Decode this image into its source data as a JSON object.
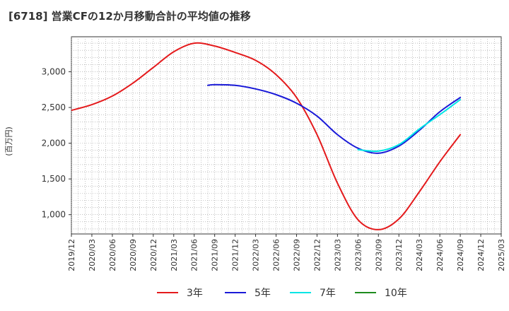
{
  "chart_data": {
    "type": "line",
    "title": "[6718]  営業CFの12か月移動合計の平均値の推移",
    "ylabel": "(百万円)",
    "xlabel": "",
    "ylim": [
      730,
      3490
    ],
    "grid": true,
    "legend_position": "bottom",
    "x_ticks": [
      "2019/12",
      "2020/03",
      "2020/06",
      "2020/09",
      "2020/12",
      "2021/03",
      "2021/06",
      "2021/09",
      "2021/12",
      "2022/03",
      "2022/06",
      "2022/09",
      "2022/12",
      "2023/03",
      "2023/06",
      "2023/09",
      "2023/12",
      "2024/03",
      "2024/06",
      "2024/09",
      "2024/12",
      "2025/03"
    ],
    "y_ticks": [
      1000,
      1500,
      2000,
      2500,
      3000
    ],
    "y_tick_labels": [
      "1,000",
      "1,500",
      "2,000",
      "2,500",
      "3,000"
    ],
    "series": [
      {
        "name": "3年",
        "color": "#e41a1c",
        "x": [
          "2019/12",
          "2020/03",
          "2020/06",
          "2020/09",
          "2020/12",
          "2021/03",
          "2021/06",
          "2021/09",
          "2021/12",
          "2022/03",
          "2022/06",
          "2022/09",
          "2022/12",
          "2023/03",
          "2023/06",
          "2023/09",
          "2023/12",
          "2024/03",
          "2024/06",
          "2024/09"
        ],
        "values": [
          2460,
          2540,
          2660,
          2840,
          3060,
          3280,
          3400,
          3360,
          3270,
          3160,
          2960,
          2640,
          2120,
          1440,
          930,
          790,
          940,
          1320,
          1740,
          2120
        ]
      },
      {
        "name": "5年",
        "color": "#1a1ad8",
        "x": [
          "2021/08",
          "2021/09",
          "2021/12",
          "2022/03",
          "2022/06",
          "2022/09",
          "2022/12",
          "2023/03",
          "2023/06",
          "2023/09",
          "2023/12",
          "2024/03",
          "2024/06",
          "2024/09"
        ],
        "values": [
          2810,
          2820,
          2810,
          2760,
          2680,
          2560,
          2380,
          2120,
          1930,
          1860,
          1960,
          2180,
          2440,
          2640
        ]
      },
      {
        "name": "7年",
        "color": "#00e5e5",
        "x": [
          "2023/06",
          "2023/09",
          "2023/12",
          "2024/03",
          "2024/06",
          "2024/09"
        ],
        "values": [
          1910,
          1890,
          1980,
          2200,
          2400,
          2610
        ]
      },
      {
        "name": "10年",
        "color": "#1e8c1e",
        "x": [],
        "values": []
      }
    ]
  }
}
